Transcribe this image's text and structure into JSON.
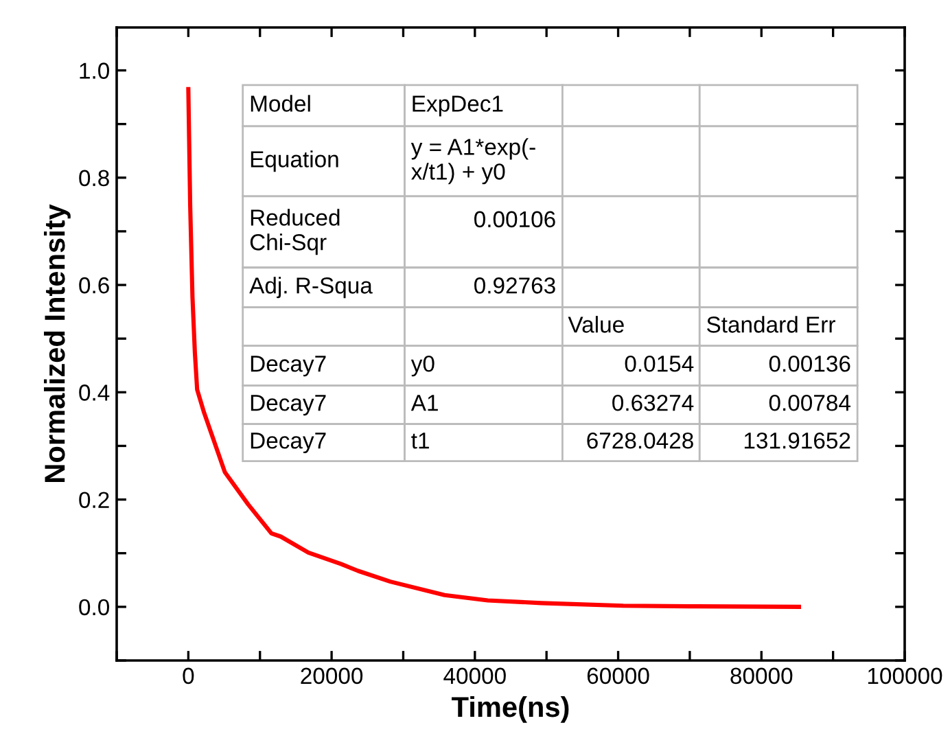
{
  "chart_data": {
    "type": "line",
    "xlabel": "Time(ns)",
    "ylabel": "Normalized Intensity",
    "xlim": [
      -10000,
      100000
    ],
    "ylim": [
      -0.1,
      1.08
    ],
    "xticks": [
      {
        "value": -10000,
        "label": null
      },
      0,
      {
        "value": 10000,
        "label": null
      },
      20000,
      {
        "value": 30000,
        "label": null
      },
      40000,
      {
        "value": 50000,
        "label": null
      },
      60000,
      {
        "value": 70000,
        "label": null
      },
      80000,
      {
        "value": 90000,
        "label": null
      },
      100000
    ],
    "yticks": [
      {
        "value": -0.1,
        "label": null
      },
      {
        "value": 0,
        "label": "0.0"
      },
      {
        "value": 0.1,
        "label": null
      },
      0.2,
      {
        "value": 0.3,
        "label": null
      },
      0.4,
      {
        "value": 0.5,
        "label": null
      },
      0.6,
      {
        "value": 0.7,
        "label": null
      },
      0.8,
      {
        "value": 0.9,
        "label": null
      },
      {
        "value": 1.0,
        "label": "1.0"
      }
    ],
    "grid": false,
    "marker": "none",
    "line_style": "solid",
    "series": [
      {
        "color": "#ff0000",
        "x": [
          0,
          260,
          580,
          913,
          1230,
          2200,
          5100,
          8350,
          11600,
          12900,
          16760,
          21300,
          23700,
          28200,
          35770,
          41800,
          49300,
          60700,
          70000,
          85240
        ],
        "values": [
          0.965,
          0.748,
          0.577,
          0.474,
          0.405,
          0.362,
          0.251,
          0.191,
          0.137,
          0.131,
          0.101,
          0.08,
          0.067,
          0.047,
          0.022,
          0.012,
          0.007,
          0.002,
          0.001,
          0.0
        ]
      }
    ],
    "annotations": [
      "Model\tExpDec1\t\t",
      "Equation\ty = A1*exp(-\nx/t1) + y0\t\t",
      "Reduced\nChi-Sqr\t0.00106\t\t",
      "Adj. R-Squa\t0.92763\t\t",
      "\t\tValue\tStandard Err",
      "Decay7\ty0\t0.0154\t0.00136",
      "Decay7\tA1\t0.63274\t0.00784",
      "Decay7\tt1\t6728.0428\t131.91652"
    ]
  }
}
